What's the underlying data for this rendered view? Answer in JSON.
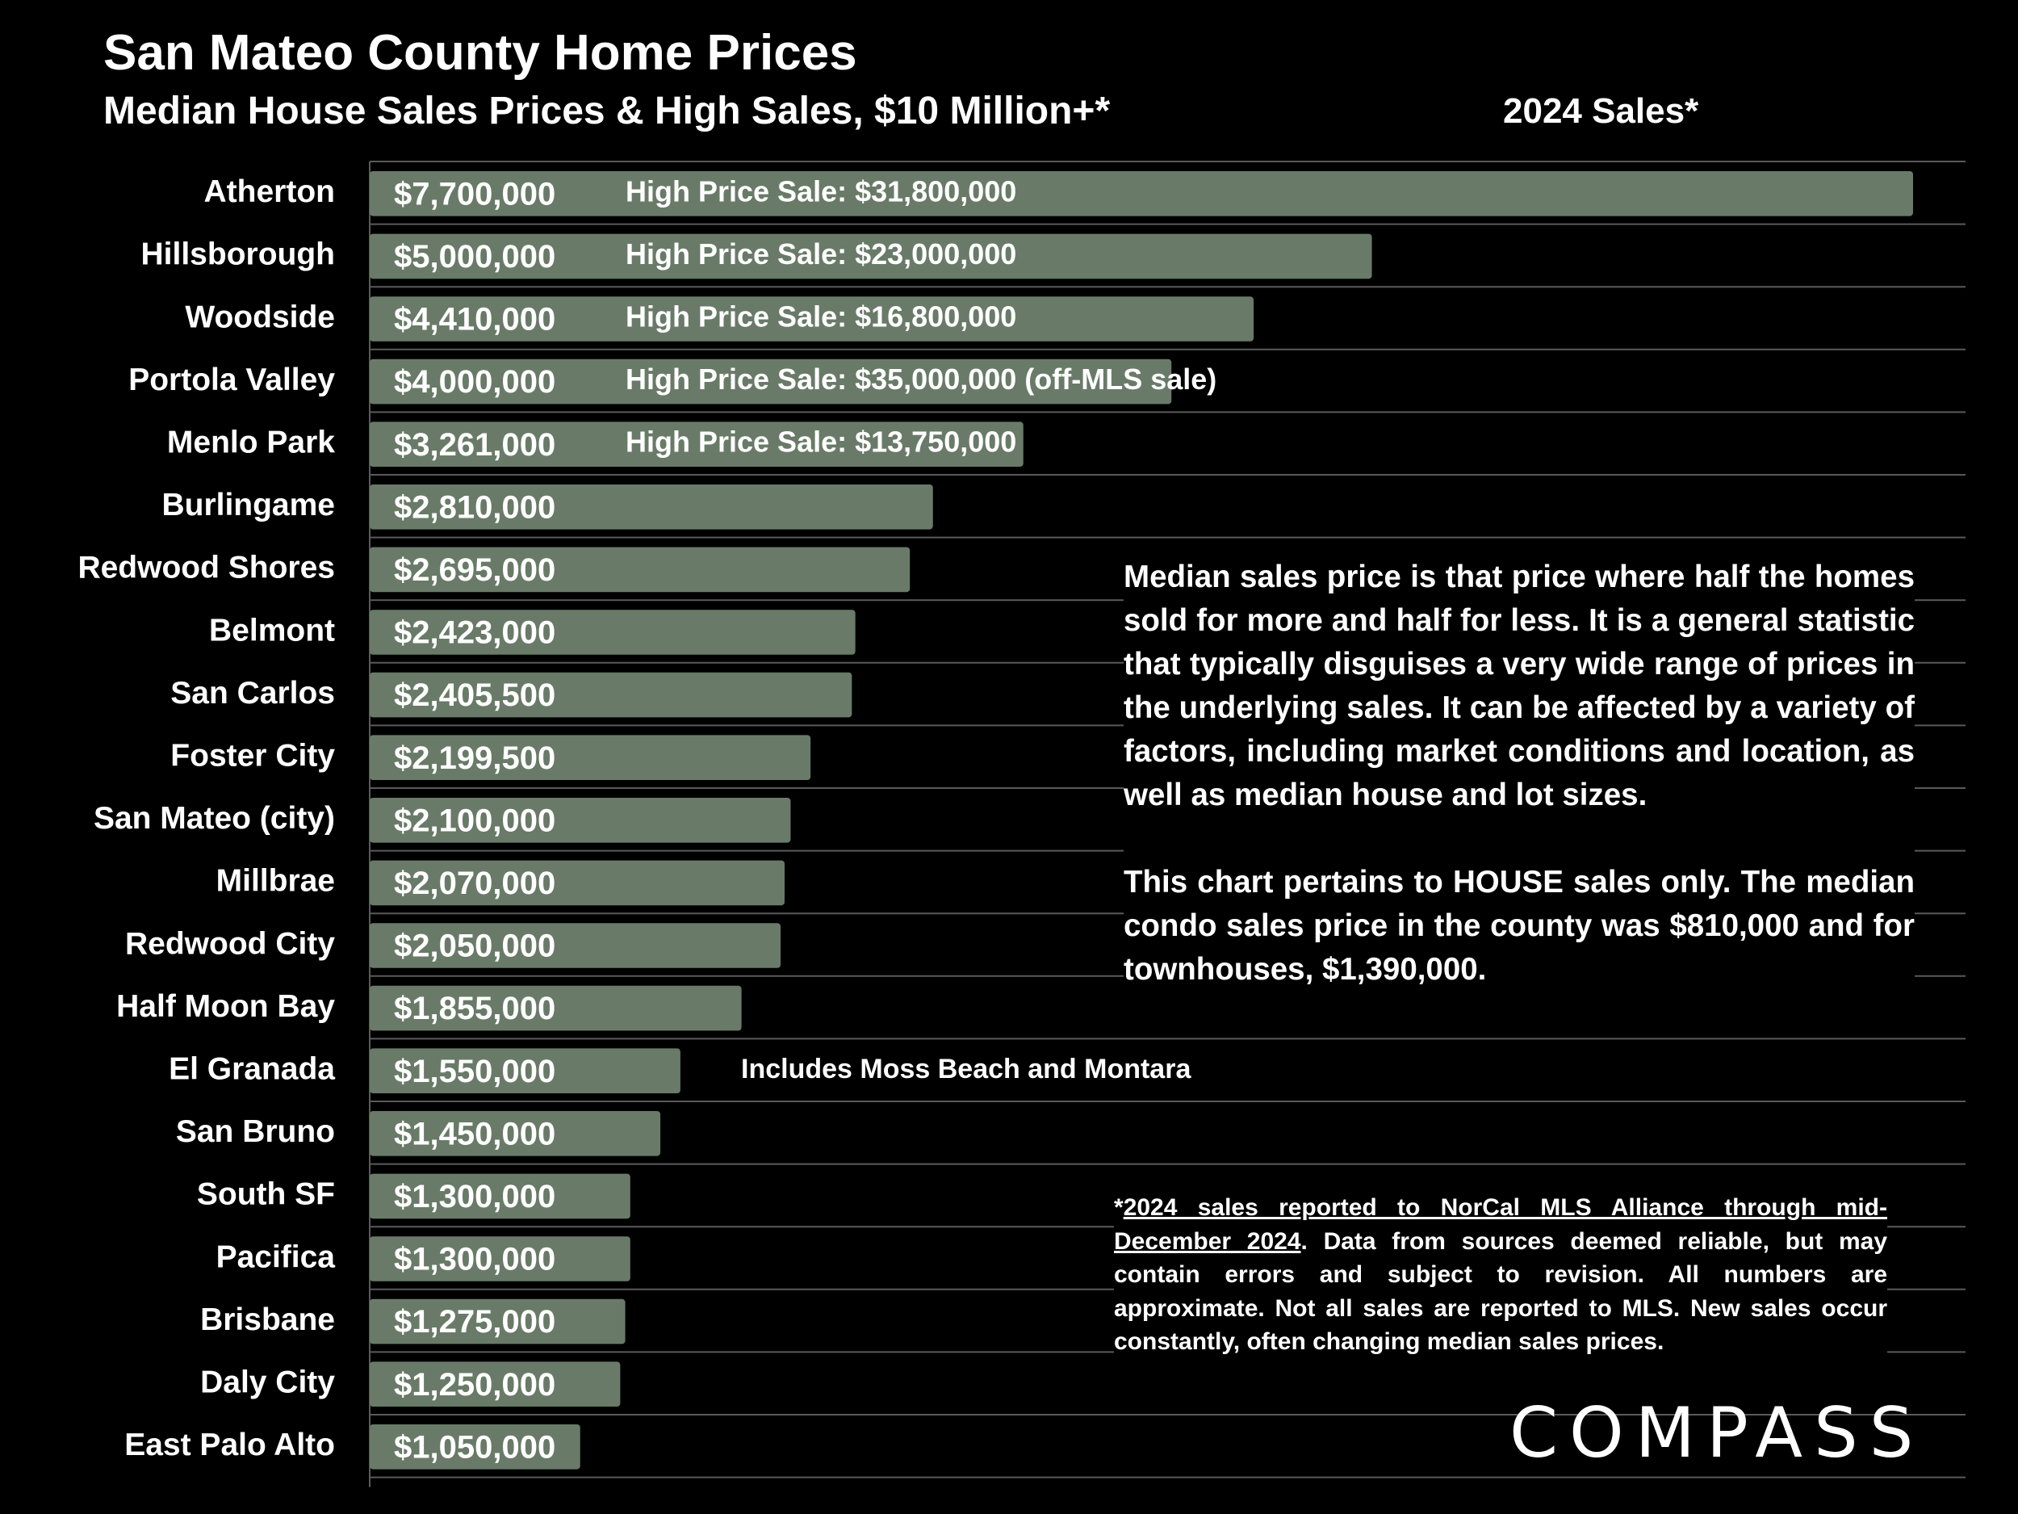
{
  "title": "San Mateo County Home Prices",
  "subtitle": "Median House Sales Prices & High Sales, $10 Million+*",
  "year_label": "2024 Sales*",
  "colors": {
    "bar": "#697b68",
    "grid": "#5a5a5a",
    "text": "#ffffff",
    "background": "#000000"
  },
  "chart_data": {
    "type": "bar",
    "orientation": "horizontal",
    "title": "Median House Sales Prices & High Sales, $10 Million+*",
    "xlabel": "",
    "ylabel": "",
    "xlim": [
      0,
      8000000
    ],
    "categories": [
      "Atherton",
      "Hillsborough",
      "Woodside",
      "Portola Valley",
      "Menlo Park",
      "Burlingame",
      "Redwood Shores",
      "Belmont",
      "San Carlos",
      "Foster City",
      "San Mateo (city)",
      "Millbrae",
      "Redwood City",
      "Half Moon Bay",
      "El Granada",
      "San Bruno",
      "South SF",
      "Pacifica",
      "Brisbane",
      "Daly City",
      "East Palo Alto"
    ],
    "values": [
      7700000,
      5000000,
      4410000,
      4000000,
      3261000,
      2810000,
      2695000,
      2423000,
      2405500,
      2199500,
      2100000,
      2070000,
      2050000,
      1855000,
      1550000,
      1450000,
      1300000,
      1300000,
      1275000,
      1250000,
      1050000
    ],
    "value_labels": [
      "$7,700,000",
      "$5,000,000",
      "$4,410,000",
      "$4,000,000",
      "$3,261,000",
      "$2,810,000",
      "$2,695,000",
      "$2,423,000",
      "$2,405,500",
      "$2,199,500",
      "$2,100,000",
      "$2,070,000",
      "$2,050,000",
      "$1,855,000",
      "$1,550,000",
      "$1,450,000",
      "$1,300,000",
      "$1,300,000",
      "$1,275,000",
      "$1,250,000",
      "$1,050,000"
    ],
    "annotations": [
      "High Price Sale:  $31,800,000",
      "High Price Sale:  $23,000,000",
      "High Price Sale:  $16,800,000",
      "High Price Sale:  $35,000,000 (off-MLS sale)",
      "High Price Sale:  $13,750,000",
      "",
      "",
      "",
      "",
      "",
      "",
      "",
      "",
      "",
      "Includes Moss Beach and Montara",
      "",
      "",
      "",
      "",
      "",
      ""
    ]
  },
  "notes": {
    "median_paragraph": "Median sales price is that price where half the homes sold for more and half for less. It is a general statistic that typically disguises a very wide range of prices in the underlying sales. It can be affected by a variety of factors, including market conditions and location, as well as median house and lot sizes.",
    "house_paragraph": "This chart pertains to HOUSE sales only. The median condo sales price in the county was $810,000 and for townhouses, $1,390,000.",
    "footnote_star": "*",
    "footnote_underlined": "2024 sales reported to NorCal MLS Alliance through mid-December 2024",
    "footnote_rest": ". Data from sources deemed reliable, but may contain errors and subject to revision. All numbers are approximate. Not all sales are reported to MLS. New sales occur constantly, often changing median sales prices."
  },
  "logo": "COMPASS"
}
